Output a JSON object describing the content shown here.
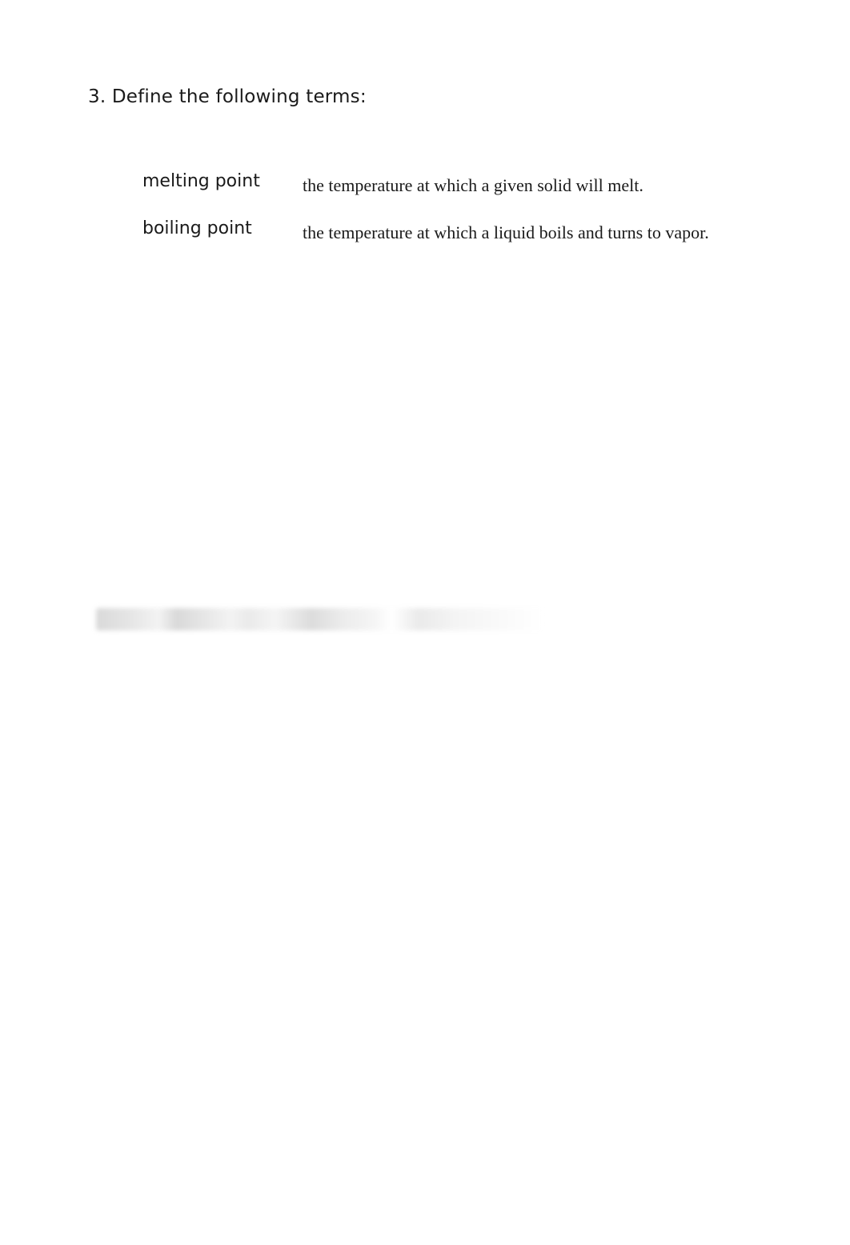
{
  "question": {
    "number": "3.",
    "prompt": "Define the following terms:"
  },
  "definitions": [
    {
      "term": "melting point",
      "definition": "the temperature at which a given solid will melt."
    },
    {
      "term": "boiling point",
      "definition": "the temperature at which a liquid boils and turns to vapor."
    }
  ],
  "colors": {
    "background": "#ffffff",
    "text": "#1a1a1a",
    "blur_gray": "#e0e0e0"
  },
  "typography": {
    "heading_family": "DejaVu Sans",
    "heading_size_pt": 17,
    "term_family": "DejaVu Sans",
    "term_size_pt": 16,
    "definition_family": "Times New Roman",
    "definition_size_pt": 16
  }
}
